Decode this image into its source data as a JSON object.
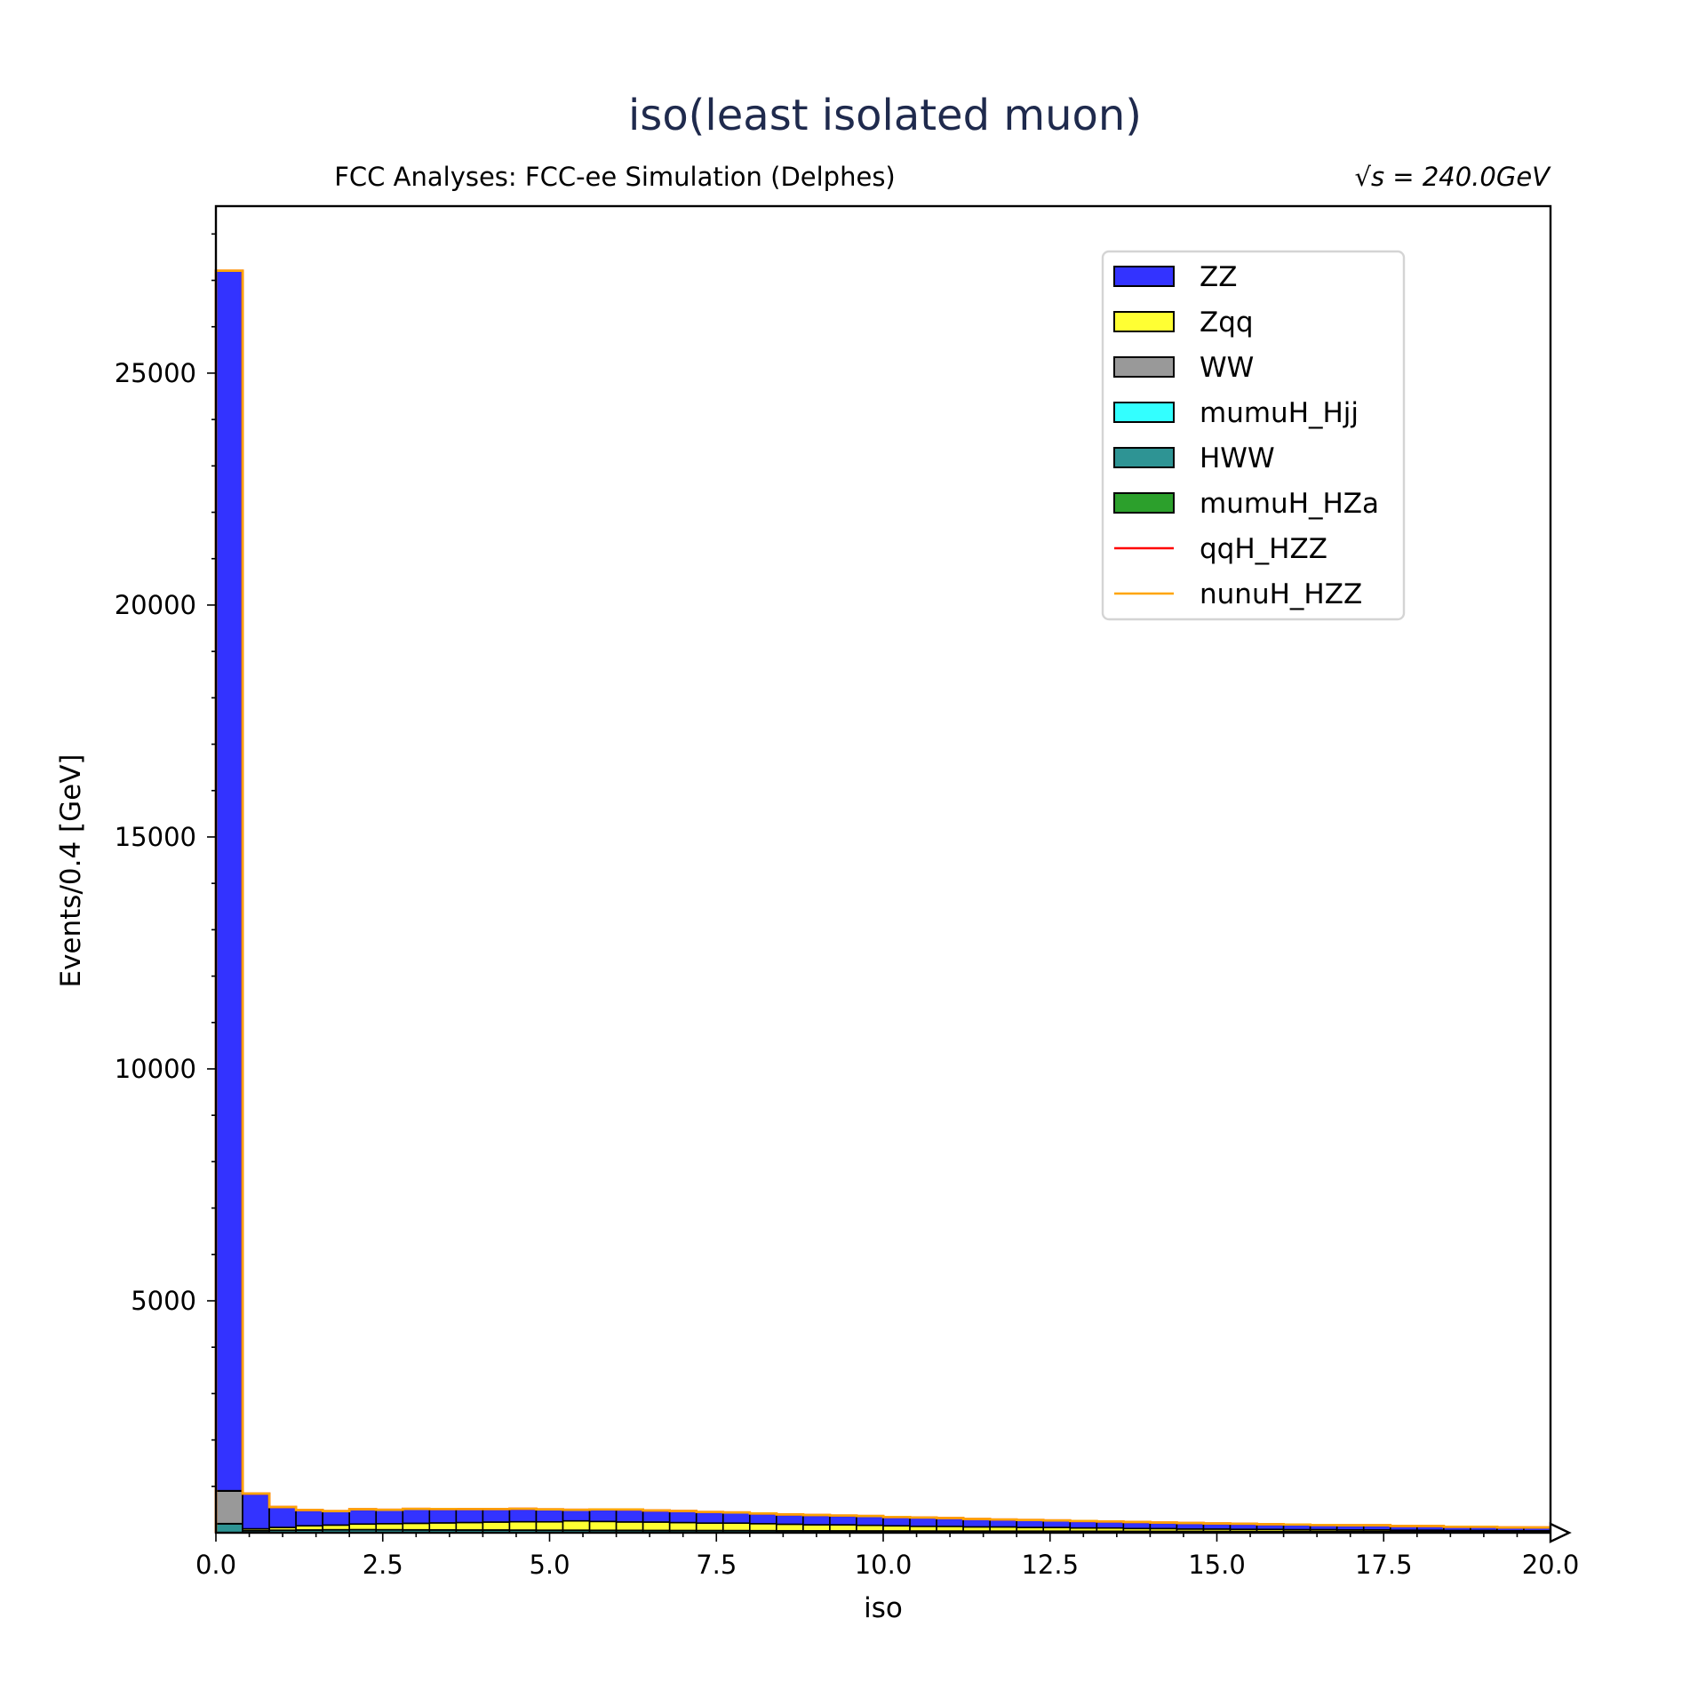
{
  "chart_data": {
    "type": "bar",
    "title": "iso(least isolated muon)",
    "subtitle_left": "FCC Analyses: FCC-ee Simulation (Delphes)",
    "subtitle_right": "√s = 240.0GeV",
    "xlabel": "iso",
    "ylabel": "Events/0.4 [GeV]",
    "xlim": [
      0,
      20
    ],
    "ylim": [
      0,
      28600
    ],
    "xticks": [
      "0.0",
      "2.5",
      "5.0",
      "7.5",
      "10.0",
      "12.5",
      "15.0",
      "17.5",
      "20.0"
    ],
    "yticks": [
      "5000",
      "10000",
      "15000",
      "20000",
      "25000"
    ],
    "grid": false,
    "legend_position": "top-right",
    "stacked": true,
    "bin_width": 0.4,
    "x_bin_edges_start": 0,
    "series": [
      {
        "name": "mumuH_HZa",
        "color": "#2ca02c",
        "style": "fill",
        "values": [
          2,
          2,
          2,
          2,
          2,
          2,
          2,
          2,
          2,
          2,
          2,
          2,
          2,
          2,
          2,
          2,
          2,
          2,
          2,
          2,
          2,
          2,
          2,
          2,
          2,
          2,
          2,
          2,
          2,
          2,
          2,
          2,
          2,
          2,
          2,
          2,
          2,
          2,
          2,
          2,
          2,
          2,
          2,
          2,
          2,
          2,
          2,
          2,
          2,
          2
        ]
      },
      {
        "name": "HWW",
        "color": "#2e9494",
        "style": "fill",
        "values": [
          190,
          40,
          50,
          55,
          60,
          62,
          60,
          58,
          57,
          55,
          55,
          52,
          50,
          50,
          48,
          47,
          45,
          44,
          43,
          42,
          40,
          38,
          37,
          36,
          35,
          34,
          33,
          32,
          31,
          30,
          30,
          29,
          28,
          27,
          26,
          25,
          25,
          24,
          24,
          23,
          22,
          22,
          21,
          21,
          20,
          20,
          19,
          19,
          18,
          18
        ]
      },
      {
        "name": "mumuH_Hjj",
        "color": "#33ffff",
        "style": "fill",
        "values": [
          5,
          3,
          3,
          3,
          3,
          3,
          3,
          3,
          3,
          3,
          3,
          3,
          3,
          3,
          3,
          3,
          3,
          3,
          3,
          3,
          3,
          3,
          3,
          3,
          3,
          3,
          3,
          3,
          3,
          3,
          3,
          3,
          3,
          3,
          3,
          3,
          3,
          3,
          3,
          3,
          3,
          3,
          3,
          3,
          3,
          3,
          3,
          3,
          3,
          3
        ]
      },
      {
        "name": "WW",
        "color": "#999999",
        "style": "fill",
        "values": [
          700,
          0,
          0,
          0,
          0,
          0,
          0,
          0,
          0,
          0,
          0,
          0,
          0,
          0,
          0,
          0,
          0,
          0,
          0,
          0,
          0,
          0,
          0,
          0,
          0,
          0,
          0,
          0,
          0,
          0,
          0,
          0,
          0,
          0,
          0,
          0,
          0,
          0,
          0,
          0,
          0,
          0,
          0,
          0,
          0,
          0,
          0,
          0,
          0,
          0
        ]
      },
      {
        "name": "Zqq",
        "color": "#ffff33",
        "style": "fill",
        "values": [
          10,
          40,
          60,
          90,
          100,
          120,
          130,
          140,
          150,
          160,
          170,
          180,
          180,
          200,
          190,
          180,
          180,
          170,
          160,
          160,
          150,
          140,
          130,
          130,
          120,
          110,
          100,
          100,
          90,
          90,
          80,
          80,
          70,
          70,
          60,
          60,
          50,
          50,
          45,
          45,
          40,
          40,
          35,
          35,
          30,
          30,
          25,
          25,
          20,
          20
        ]
      },
      {
        "name": "ZZ",
        "color": "#3333ff",
        "style": "fill",
        "values": [
          26300,
          760,
          440,
          340,
          300,
          320,
          300,
          310,
          300,
          290,
          280,
          280,
          270,
          240,
          260,
          270,
          250,
          250,
          240,
          230,
          220,
          210,
          210,
          200,
          200,
          190,
          190,
          180,
          170,
          160,
          160,
          150,
          150,
          140,
          140,
          130,
          130,
          120,
          120,
          110,
          110,
          100,
          100,
          100,
          90,
          90,
          80,
          80,
          70,
          70
        ]
      },
      {
        "name": "qqH_HZZ",
        "color": "#ff0000",
        "style": "line",
        "values": [
          0,
          0,
          0,
          0,
          0,
          0,
          0,
          0,
          0,
          0,
          0,
          0,
          0,
          0,
          0,
          0,
          0,
          0,
          0,
          0,
          0,
          0,
          0,
          0,
          0,
          0,
          0,
          0,
          0,
          0,
          0,
          0,
          0,
          0,
          0,
          0,
          0,
          0,
          0,
          0,
          0,
          0,
          0,
          0,
          0,
          0,
          0,
          0,
          0,
          0
        ]
      },
      {
        "name": "nunuH_HZZ",
        "color": "#ffa500",
        "style": "line",
        "values": [
          0,
          0,
          0,
          0,
          0,
          0,
          0,
          0,
          0,
          0,
          0,
          0,
          0,
          0,
          0,
          0,
          0,
          0,
          0,
          0,
          0,
          0,
          0,
          0,
          0,
          0,
          0,
          0,
          0,
          0,
          0,
          0,
          0,
          0,
          0,
          0,
          0,
          0,
          0,
          0,
          0,
          0,
          0,
          0,
          0,
          0,
          0,
          0,
          0,
          0
        ]
      }
    ],
    "legend_order": [
      "ZZ",
      "Zqq",
      "WW",
      "mumuH_Hjj",
      "HWW",
      "mumuH_HZa",
      "qqH_HZZ",
      "nunuH_HZZ"
    ],
    "overflow_marker": "arrow-right"
  }
}
